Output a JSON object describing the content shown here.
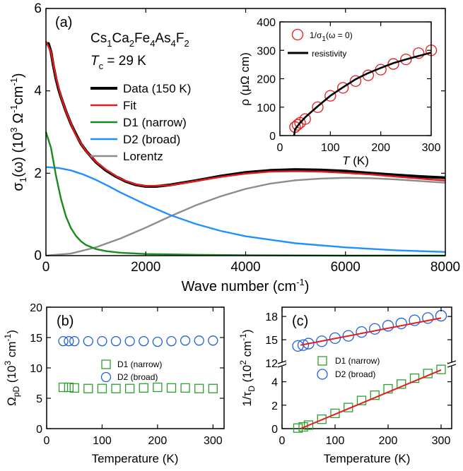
{
  "panel_a": {
    "label": "(a)",
    "compound": [
      "Cs",
      "1",
      "Ca",
      "2",
      "Fe",
      "4",
      "As",
      "4",
      "F",
      "2"
    ],
    "tc_text": [
      "T",
      "c",
      " = 29 K"
    ],
    "xlabel": [
      "Wave number (cm",
      "-1",
      ")"
    ],
    "ylabel": [
      "σ",
      "1",
      "(ω) (10",
      "3",
      " Ω",
      "-1",
      "cm",
      "-1",
      ")"
    ],
    "colors": {
      "data": "#000000",
      "fit": "#e41a1c",
      "d1": "#1a8a1a",
      "d2": "#1e90ff",
      "lorentz": "#8c8c8c"
    }
  },
  "panel_inset": {
    "xlabel": [
      "T",
      " (K)"
    ],
    "ylabel": "ρ (μΩ cm)",
    "legend": [
      [
        "1/σ",
        "1",
        "(ω = 0)"
      ],
      "resistivity"
    ]
  },
  "panel_b": {
    "label": "(b)",
    "xlabel": "Temperature (K)",
    "ylabel": [
      "Ω",
      "pD",
      " (10",
      "3",
      " cm",
      "-1",
      ")"
    ],
    "legend": [
      "D1 (narrow)",
      "D2 (broad)"
    ]
  },
  "panel_c": {
    "label": "(c)",
    "xlabel": "Temperature (K)",
    "ylabel": [
      "1/τ",
      "D",
      " (10",
      "2",
      " cm",
      "-1",
      ")"
    ],
    "legend": [
      "D1 (narrow)",
      "D2 (broad)"
    ]
  },
  "chart_data": [
    {
      "type": "line",
      "id": "a",
      "xlim": [
        0,
        8000
      ],
      "ylim": [
        0,
        6
      ],
      "xticks": [
        0,
        2000,
        4000,
        6000,
        8000
      ],
      "yticks": [
        0,
        2,
        4,
        6
      ],
      "series": [
        {
          "name": "Data (150 K)",
          "color": "#000000",
          "x": [
            20,
            50,
            100,
            150,
            200,
            250,
            300,
            400,
            500,
            600,
            700,
            800,
            1000,
            1200,
            1400,
            1600,
            1800,
            2000,
            2200,
            2500,
            3000,
            3500,
            4000,
            4500,
            5000,
            5500,
            6000,
            6500,
            7000,
            7500,
            8000
          ],
          "y": [
            5.1,
            5.15,
            4.95,
            4.6,
            4.3,
            4.05,
            3.85,
            3.5,
            3.2,
            2.95,
            2.72,
            2.55,
            2.27,
            2.07,
            1.92,
            1.8,
            1.72,
            1.68,
            1.68,
            1.72,
            1.82,
            1.93,
            2.02,
            2.07,
            2.09,
            2.08,
            2.05,
            2.0,
            1.96,
            1.92,
            1.89
          ]
        },
        {
          "name": "Fit",
          "color": "#e41a1c",
          "x": [
            0,
            100,
            200,
            300,
            400,
            600,
            800,
            1000,
            1200,
            1500,
            1800,
            2000,
            2500,
            3000,
            3500,
            4000,
            4500,
            5000,
            5500,
            6000,
            6500,
            7000,
            7500,
            8000
          ],
          "y": [
            5.2,
            4.95,
            4.33,
            3.86,
            3.5,
            2.92,
            2.54,
            2.28,
            2.09,
            1.86,
            1.73,
            1.69,
            1.71,
            1.81,
            1.91,
            1.99,
            2.04,
            2.05,
            2.04,
            2.01,
            1.97,
            1.92,
            1.87,
            1.82
          ]
        },
        {
          "name": "D1 (narrow)",
          "color": "#1a8a1a",
          "x": [
            0,
            100,
            200,
            300,
            400,
            500,
            600,
            700,
            800,
            1000,
            1200,
            1500,
            2000,
            3000,
            4000,
            6000,
            8000
          ],
          "y": [
            3.0,
            2.62,
            1.95,
            1.38,
            0.95,
            0.67,
            0.48,
            0.35,
            0.26,
            0.16,
            0.11,
            0.07,
            0.04,
            0.02,
            0.01,
            0.0,
            0.0
          ]
        },
        {
          "name": "D2 (broad)",
          "color": "#1e90ff",
          "x": [
            0,
            250,
            500,
            750,
            1000,
            1250,
            1500,
            2000,
            2500,
            3000,
            3500,
            4000,
            5000,
            6000,
            7000,
            8000
          ],
          "y": [
            2.15,
            2.13,
            2.07,
            1.97,
            1.84,
            1.69,
            1.53,
            1.24,
            0.98,
            0.77,
            0.6,
            0.47,
            0.3,
            0.2,
            0.13,
            0.09
          ]
        },
        {
          "name": "Lorentz",
          "color": "#8c8c8c",
          "x": [
            0,
            500,
            1000,
            1500,
            2000,
            2500,
            3000,
            3500,
            4000,
            4500,
            5000,
            5500,
            6000,
            6500,
            7000,
            7500,
            8000
          ],
          "y": [
            0.0,
            0.05,
            0.2,
            0.42,
            0.68,
            0.96,
            1.22,
            1.44,
            1.62,
            1.75,
            1.83,
            1.87,
            1.89,
            1.88,
            1.85,
            1.81,
            1.77
          ]
        }
      ]
    },
    {
      "type": "scatter",
      "id": "inset",
      "xlim": [
        0,
        300
      ],
      "ylim": [
        0,
        400
      ],
      "xticks": [
        0,
        100,
        200,
        300
      ],
      "yticks": [
        0,
        100,
        200,
        300,
        400
      ],
      "series": [
        {
          "name": "1/σ1(ω = 0)",
          "marker": "circle",
          "color": "#e41a1c",
          "x": [
            30,
            35,
            40,
            50,
            75,
            100,
            125,
            150,
            175,
            200,
            225,
            250,
            275,
            300
          ],
          "y": [
            30,
            38,
            45,
            58,
            100,
            140,
            168,
            192,
            212,
            232,
            252,
            268,
            290,
            300
          ]
        },
        {
          "name": "resistivity",
          "marker": "line",
          "color": "#000000",
          "x": [
            28,
            29,
            30,
            40,
            50,
            75,
            100,
            125,
            150,
            175,
            200,
            225,
            250,
            275,
            300
          ],
          "y": [
            0,
            10,
            22,
            45,
            64,
            103,
            140,
            170,
            198,
            220,
            238,
            255,
            268,
            280,
            292
          ]
        }
      ]
    },
    {
      "type": "scatter",
      "id": "b",
      "xlim": [
        0,
        320
      ],
      "ylim": [
        0,
        20
      ],
      "xticks": [
        0,
        100,
        200,
        300
      ],
      "yticks": [
        0,
        5,
        10,
        15,
        20
      ],
      "series": [
        {
          "name": "D1 (narrow)",
          "marker": "square",
          "color": "#2e9e2e",
          "x": [
            30,
            40,
            50,
            75,
            100,
            125,
            150,
            175,
            200,
            225,
            250,
            275,
            300
          ],
          "y": [
            6.8,
            6.8,
            6.7,
            6.6,
            6.6,
            6.6,
            6.6,
            6.7,
            6.8,
            6.7,
            6.7,
            6.6,
            6.6
          ]
        },
        {
          "name": "D2 (broad)",
          "marker": "circle",
          "color": "#1f5fe0",
          "x": [
            30,
            40,
            50,
            75,
            100,
            125,
            150,
            175,
            200,
            225,
            250,
            275,
            300
          ],
          "y": [
            14.4,
            14.4,
            14.4,
            14.4,
            14.4,
            14.4,
            14.4,
            14.4,
            14.3,
            14.4,
            14.5,
            14.5,
            14.5
          ]
        }
      ]
    },
    {
      "type": "scatter",
      "id": "c",
      "xlim": [
        0,
        320
      ],
      "yticks_upper": [
        12,
        15,
        18
      ],
      "ylim_upper": [
        12,
        19.2
      ],
      "yticks_lower": [
        0,
        2,
        4
      ],
      "ylim_lower": [
        0,
        5.3
      ],
      "xticks": [
        0,
        100,
        200,
        300
      ],
      "series": [
        {
          "name": "D1 (narrow)",
          "marker": "square",
          "color": "#2e9e2e",
          "segment": "lower",
          "x": [
            30,
            40,
            50,
            75,
            100,
            125,
            150,
            175,
            200,
            225,
            250,
            275,
            300
          ],
          "y": [
            0.05,
            0.15,
            0.3,
            0.8,
            1.3,
            1.8,
            2.4,
            2.85,
            3.4,
            3.8,
            4.3,
            4.7,
            5.05
          ]
        },
        {
          "name": "D2 (broad)",
          "marker": "circle",
          "color": "#1f5fe0",
          "segment": "upper",
          "x": [
            30,
            40,
            50,
            75,
            100,
            125,
            150,
            175,
            200,
            225,
            250,
            275,
            300
          ],
          "y": [
            14.2,
            14.3,
            14.5,
            14.8,
            15.2,
            15.5,
            16.0,
            16.4,
            16.8,
            17.1,
            17.5,
            17.8,
            18.1
          ]
        },
        {
          "name": "D1 linear fit",
          "marker": "line",
          "color": "#e41a1c",
          "segment": "lower",
          "x": [
            35,
            300
          ],
          "y": [
            0.0,
            5.0
          ]
        },
        {
          "name": "D2 linear fit",
          "marker": "line",
          "color": "#e41a1c",
          "segment": "upper",
          "x": [
            35,
            300
          ],
          "y": [
            14.3,
            17.8
          ]
        }
      ]
    }
  ]
}
